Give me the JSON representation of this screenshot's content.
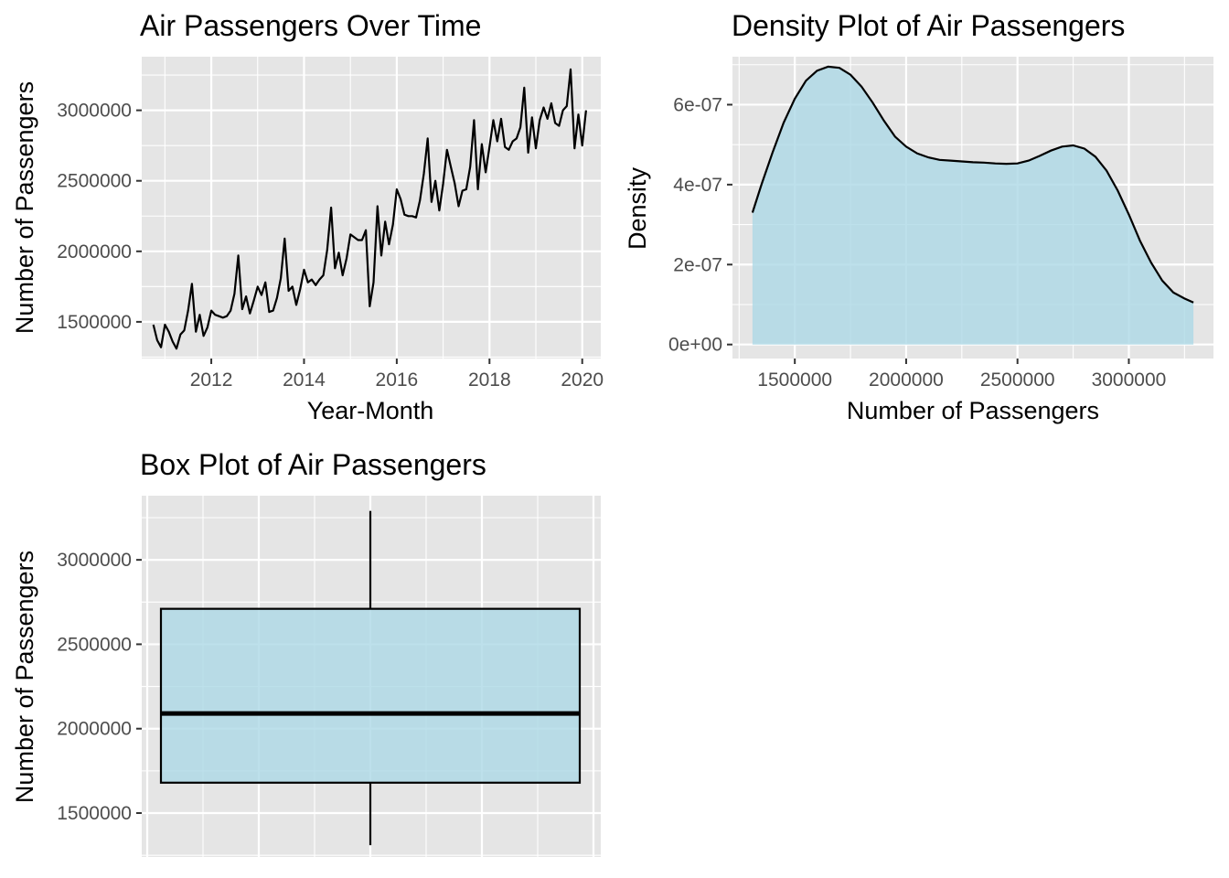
{
  "chart_data": [
    {
      "type": "line",
      "title": "Air Passengers Over Time",
      "xlabel": "Year-Month",
      "ylabel": "Number of Passengers",
      "x_ticks": [
        2012,
        2014,
        2016,
        2018,
        2020
      ],
      "y_ticks": [
        1500000,
        2000000,
        2500000,
        3000000
      ],
      "xlim": [
        2010.5,
        2020.4
      ],
      "ylim": [
        1240000,
        3380000
      ],
      "x_start": "2010-10",
      "grid": true,
      "series": [
        {
          "values": [
            1480000,
            1370000,
            1320000,
            1480000,
            1430000,
            1360000,
            1310000,
            1410000,
            1440000,
            1580000,
            1770000,
            1430000,
            1550000,
            1400000,
            1460000,
            1580000,
            1550000,
            1540000,
            1530000,
            1540000,
            1580000,
            1700000,
            1970000,
            1590000,
            1680000,
            1560000,
            1650000,
            1750000,
            1690000,
            1780000,
            1570000,
            1580000,
            1670000,
            1810000,
            2090000,
            1720000,
            1750000,
            1620000,
            1730000,
            1870000,
            1780000,
            1800000,
            1760000,
            1800000,
            1830000,
            2010000,
            2310000,
            1880000,
            1990000,
            1830000,
            1950000,
            2120000,
            2100000,
            2080000,
            2080000,
            2150000,
            1610000,
            1780000,
            2320000,
            1970000,
            2210000,
            2050000,
            2190000,
            2440000,
            2370000,
            2260000,
            2250000,
            2250000,
            2240000,
            2360000,
            2550000,
            2800000,
            2350000,
            2500000,
            2290000,
            2480000,
            2720000,
            2600000,
            2480000,
            2320000,
            2430000,
            2440000,
            2600000,
            2930000,
            2440000,
            2760000,
            2560000,
            2740000,
            2930000,
            2780000,
            2940000,
            2740000,
            2720000,
            2780000,
            2800000,
            2880000,
            3160000,
            2700000,
            2950000,
            2730000,
            2930000,
            3020000,
            2940000,
            3050000,
            2910000,
            2890000,
            3000000,
            3030000,
            3290000,
            2730000,
            2970000,
            2750000,
            3000000
          ]
        }
      ]
    },
    {
      "type": "area",
      "title": "Density Plot of Air Passengers",
      "xlabel": "Number of Passengers",
      "ylabel": "Density",
      "x_ticks": [
        1500000,
        2000000,
        2500000,
        3000000
      ],
      "y_ticks": [
        0,
        2e-07,
        4e-07,
        6e-07
      ],
      "y_tick_labels": [
        "0e+00",
        "2e-07",
        "4e-07",
        "6e-07"
      ],
      "xlim": [
        1220000,
        3380000
      ],
      "ylim": [
        -3.5e-08,
        7.2e-07
      ],
      "fill_color": "#add8e6",
      "line_color": "#000000",
      "grid": true,
      "x": [
        1310000,
        1350000,
        1400000,
        1450000,
        1500000,
        1550000,
        1600000,
        1650000,
        1700000,
        1750000,
        1800000,
        1850000,
        1900000,
        1950000,
        2000000,
        2050000,
        2100000,
        2150000,
        2200000,
        2250000,
        2300000,
        2350000,
        2400000,
        2450000,
        2500000,
        2550000,
        2600000,
        2650000,
        2700000,
        2750000,
        2800000,
        2850000,
        2900000,
        2950000,
        3000000,
        3050000,
        3100000,
        3150000,
        3200000,
        3250000,
        3290000
      ],
      "y": [
        3.3e-07,
        4e-07,
        4.8e-07,
        5.55e-07,
        6.15e-07,
        6.6e-07,
        6.85e-07,
        6.95e-07,
        6.92e-07,
        6.75e-07,
        6.45e-07,
        6.05e-07,
        5.6e-07,
        5.2e-07,
        4.95e-07,
        4.78e-07,
        4.68e-07,
        4.62e-07,
        4.6e-07,
        4.58e-07,
        4.56e-07,
        4.55e-07,
        4.53e-07,
        4.52e-07,
        4.53e-07,
        4.6e-07,
        4.72e-07,
        4.85e-07,
        4.95e-07,
        4.98e-07,
        4.9e-07,
        4.7e-07,
        4.35e-07,
        3.85e-07,
        3.25e-07,
        2.6e-07,
        2.05e-07,
        1.6e-07,
        1.3e-07,
        1.15e-07,
        1.05e-07
      ]
    },
    {
      "type": "box",
      "title": "Box Plot of Air Passengers",
      "xlabel": "",
      "ylabel": "Number of Passengers",
      "y_ticks": [
        1500000,
        2000000,
        2500000,
        3000000
      ],
      "ylim": [
        1240000,
        3380000
      ],
      "min": 1310000,
      "q1": 1680000,
      "median": 2090000,
      "q3": 2710000,
      "max": 3290000,
      "fill_color": "#add8e6",
      "grid": true
    }
  ]
}
